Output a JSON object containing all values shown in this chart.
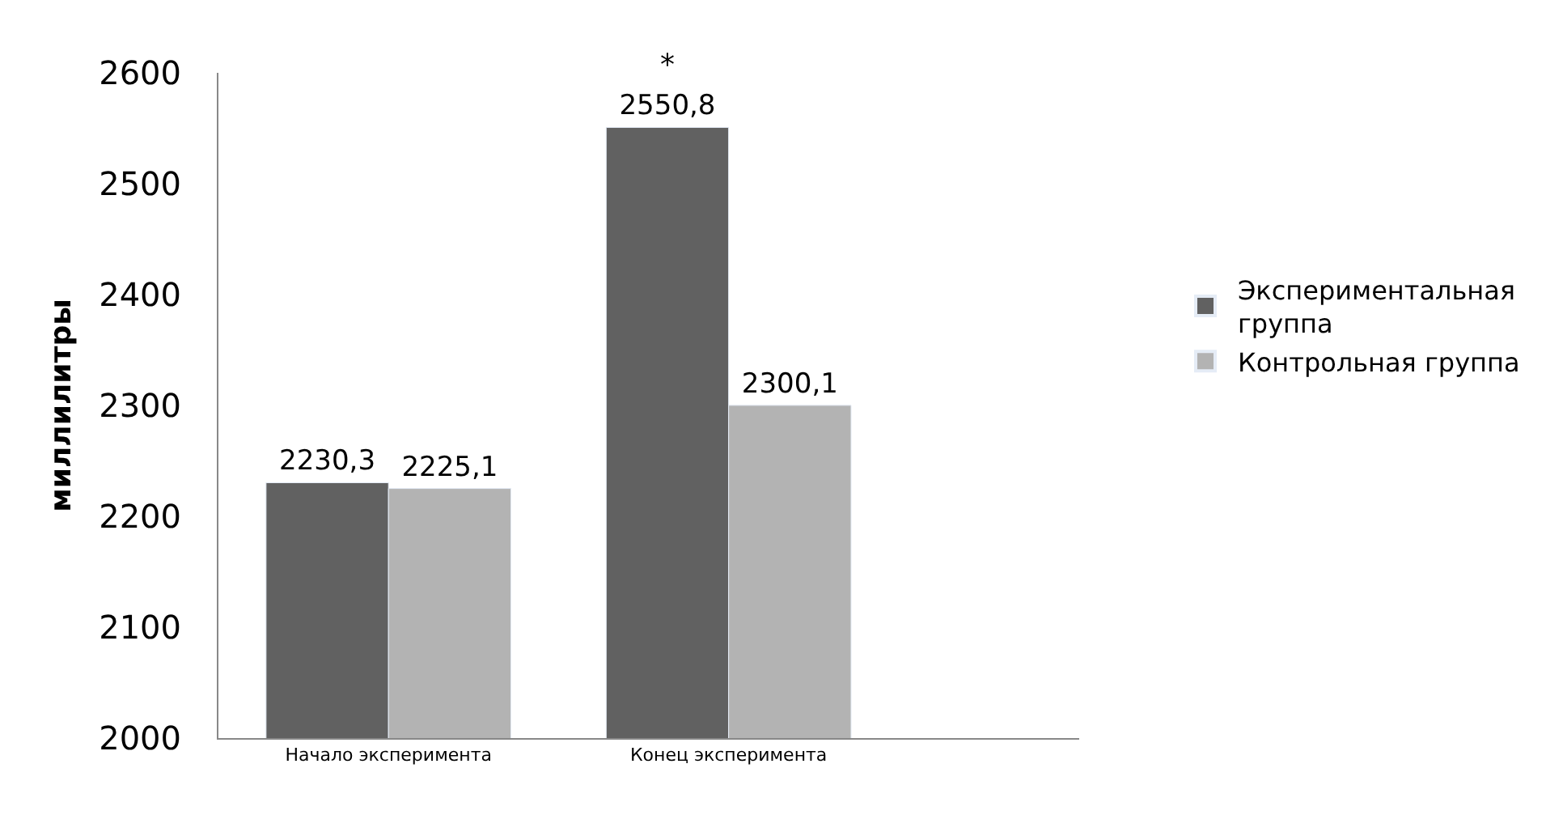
{
  "chart_data": {
    "type": "bar",
    "ylabel": "миллилитры",
    "categories": [
      "Начало эксперимента",
      "Конец эксперимента"
    ],
    "series": [
      {
        "name": "Экспериментальная группа",
        "color": "#616161",
        "values": [
          2230.3,
          2550.8
        ],
        "value_labels": [
          "2230,3",
          "2550,8"
        ]
      },
      {
        "name": "Контрольная группа",
        "color": "#b3b3b3",
        "values": [
          2225.1,
          2300.1
        ],
        "value_labels": [
          "2225,1",
          "2300,1"
        ]
      }
    ],
    "ylim": [
      2000,
      2600
    ],
    "yticks": [
      2000,
      2100,
      2200,
      2300,
      2400,
      2500,
      2600
    ],
    "legend": "right",
    "annotations": [
      {
        "text": "*",
        "x": "Конец эксперимента",
        "y": 2550.8
      }
    ]
  }
}
